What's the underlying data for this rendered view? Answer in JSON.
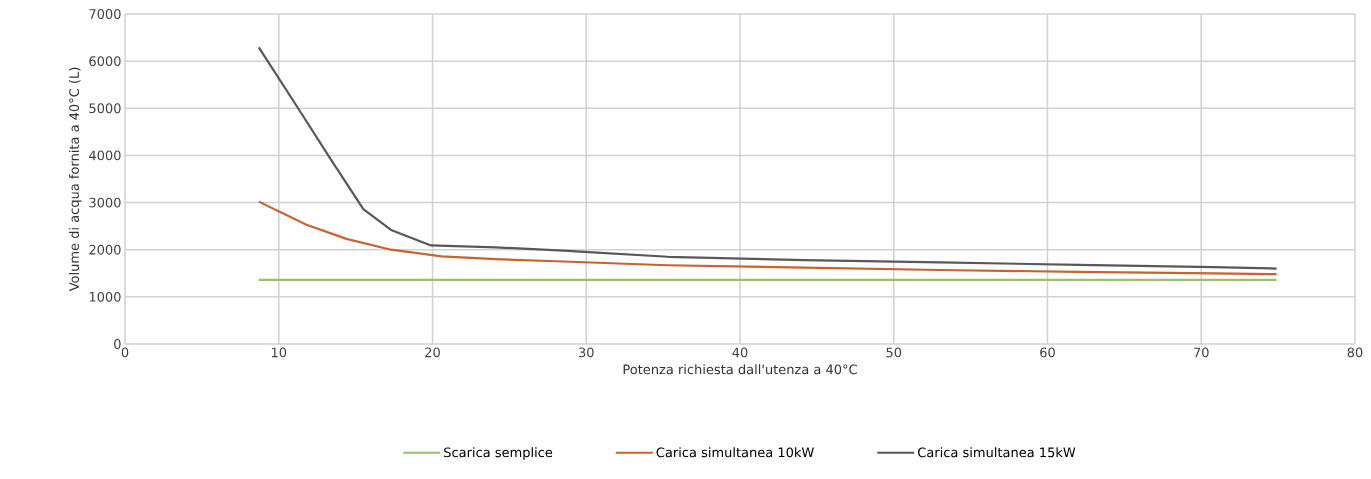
{
  "chart_data": {
    "type": "line",
    "xlabel": "Potenza richiesta dall'utenza a 40°C",
    "ylabel": "Volume di acqua fornita a 40°C (L)",
    "xlim": [
      0,
      80
    ],
    "xticks": [
      0,
      10,
      20,
      30,
      40,
      50,
      60,
      70,
      80
    ],
    "ylim": [
      0,
      7000
    ],
    "yticks": [
      0,
      1000,
      2000,
      3000,
      4000,
      5000,
      6000,
      7000
    ],
    "grid": true,
    "legend": "bottom",
    "marker": "none",
    "line_style": "solid",
    "series": [
      {
        "name": "Scarica semplice",
        "color": "#9bc06b",
        "x": [
          8.7,
          74.9
        ],
        "values": [
          1360,
          1360
        ]
      },
      {
        "name": "Carica simultanea 10kW",
        "color": "#c8622e",
        "x": [
          8.7,
          11.8,
          14.4,
          17.3,
          20.6,
          24.1,
          28.5,
          35.3,
          44.2,
          53,
          62,
          70.8,
          74.9
        ],
        "values": [
          3020,
          2530,
          2230,
          2000,
          1860,
          1800,
          1750,
          1670,
          1620,
          1570,
          1530,
          1500,
          1480
        ]
      },
      {
        "name": "Carica simultanea 15kW",
        "color": "#58585a",
        "x": [
          8.7,
          11.3,
          13.3,
          15.5,
          17.3,
          19.9,
          24.1,
          28.5,
          35.3,
          44.2,
          53,
          62,
          70.8,
          74.9
        ],
        "values": [
          6290,
          4980,
          3960,
          2860,
          2420,
          2090,
          2050,
          1980,
          1850,
          1780,
          1730,
          1680,
          1630,
          1600
        ]
      }
    ]
  }
}
